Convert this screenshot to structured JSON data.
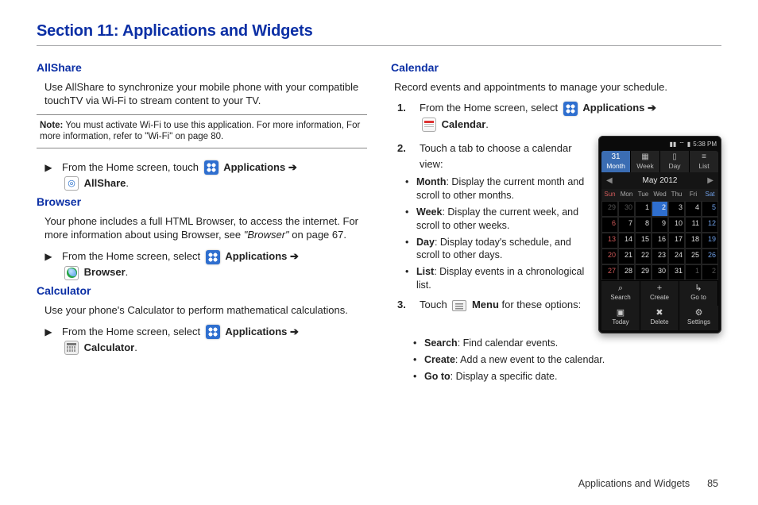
{
  "section_title": "Section 11: Applications and Widgets",
  "footer": {
    "label": "Applications and Widgets",
    "page": "85"
  },
  "allshare": {
    "head": "AllShare",
    "desc": "Use AllShare to synchronize your mobile phone with your compatible touchTV via Wi-Fi to stream content to your TV.",
    "note_label": "Note:",
    "note_body": "You must activate Wi-Fi to use this application. For more information, For more information, refer to \"Wi-Fi\"  on page 80.",
    "step_pre": "From the Home screen, touch ",
    "apps_label": "Applications",
    "arrow": "➔",
    "app_name": "AllShare"
  },
  "browser": {
    "head": "Browser",
    "desc_pre": "Your phone includes a full HTML Browser, to access the internet. For more information about using Browser, see ",
    "desc_em": "\"Browser\"",
    "desc_post": " on page 67.",
    "step_pre": "From the Home screen, select ",
    "apps_label": "Applications",
    "arrow": "➔",
    "app_name": "Browser"
  },
  "calculator": {
    "head": "Calculator",
    "desc": "Use your phone's Calculator to perform mathematical calculations.",
    "step_pre": "From the Home screen, select ",
    "apps_label": "Applications",
    "arrow": "➔",
    "app_name": "Calculator"
  },
  "calendar": {
    "head": "Calendar",
    "desc": "Record events and appointments to manage your schedule.",
    "step1_pre": "From the Home screen, select ",
    "apps_label": "Applications",
    "arrow": "➔",
    "app_name": "Calendar",
    "step2": "Touch a tab to choose a calendar view:",
    "views": [
      {
        "name": "Month",
        "desc": ": Display the current month and scroll to other months."
      },
      {
        "name": "Week",
        "desc": ": Display the current week, and scroll to other weeks."
      },
      {
        "name": "Day",
        "desc": ": Display today's schedule, and scroll to other days."
      },
      {
        "name": "List",
        "desc": ": Display events in a chronological list."
      }
    ],
    "step3_pre": "Touch ",
    "step3_menu": "Menu",
    "step3_post": " for these options:",
    "opts": [
      {
        "name": "Search",
        "desc": ": Find calendar events."
      },
      {
        "name": "Create",
        "desc": ": Add a new event to the calendar."
      },
      {
        "name": "Go to",
        "desc": ": Display a specific date."
      }
    ]
  },
  "phone": {
    "status_time": "5:38 PM",
    "tabs": [
      {
        "label": "Month",
        "icon": "31",
        "active": true
      },
      {
        "label": "Week",
        "icon": "▦",
        "active": false
      },
      {
        "label": "Day",
        "icon": "▯",
        "active": false
      },
      {
        "label": "List",
        "icon": "≡",
        "active": false
      }
    ],
    "month_label": "May  2012",
    "dow": [
      "Sun",
      "Mon",
      "Tue",
      "Wed",
      "Thu",
      "Fri",
      "Sat"
    ],
    "bottom": [
      {
        "label": "Search",
        "icon": "⌕"
      },
      {
        "label": "Create",
        "icon": "+"
      },
      {
        "label": "Go to",
        "icon": "↳"
      },
      {
        "label": "Today",
        "icon": "▣"
      },
      {
        "label": "Delete",
        "icon": "✖"
      },
      {
        "label": "Settings",
        "icon": "⚙"
      }
    ],
    "today_day": 2,
    "grid": [
      [
        29,
        30,
        1,
        2,
        3,
        4,
        5
      ],
      [
        6,
        7,
        8,
        9,
        10,
        11,
        12
      ],
      [
        13,
        14,
        15,
        16,
        17,
        18,
        19
      ],
      [
        20,
        21,
        22,
        23,
        24,
        25,
        26
      ],
      [
        27,
        28,
        29,
        30,
        31,
        1,
        2
      ]
    ]
  }
}
